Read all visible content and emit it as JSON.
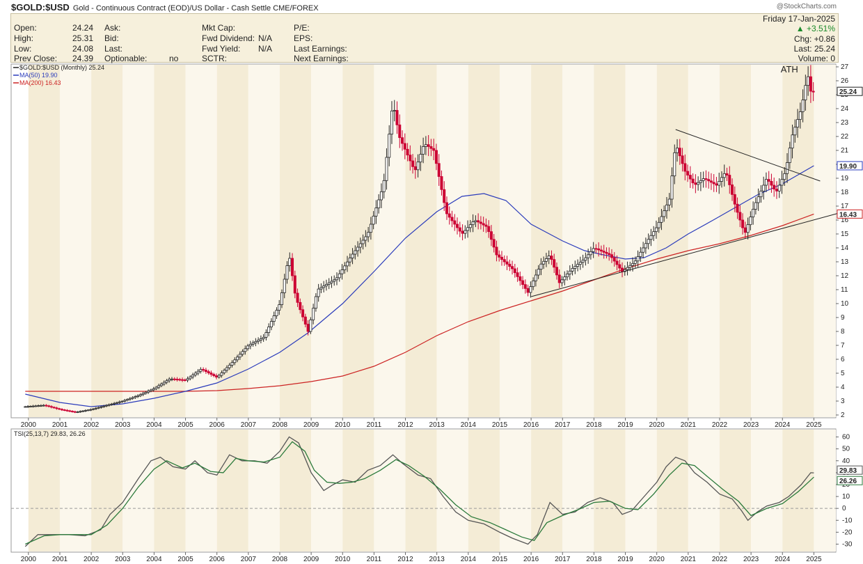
{
  "header": {
    "symbol": "$GOLD:$USD",
    "description": "Gold - Continuous Contract (EOD)/US Dollar - Cash Settle",
    "exchange": "CME/FOREX",
    "brand": "@StockCharts.com"
  },
  "info": {
    "open_label": "Open:",
    "open": "24.24",
    "high_label": "High:",
    "high": "25.31",
    "low_label": "Low:",
    "low": "24.08",
    "prev_label": "Prev Close:",
    "prev": "24.39",
    "ask_label": "Ask:",
    "bid_label": "Bid:",
    "last_label": "Last:",
    "optionable_label": "Optionable:",
    "optionable": "no",
    "mktcap_label": "Mkt Cap:",
    "fwddiv_label": "Fwd Dividend:",
    "fwddiv": "N/A",
    "fwdyield_label": "Fwd Yield:",
    "fwdyield": "N/A",
    "sctr_label": "SCTR:",
    "pe_label": "P/E:",
    "eps_label": "EPS:",
    "lastearn_label": "Last Earnings:",
    "nextearn_label": "Next Earnings:",
    "date": "Friday 17-Jan-2025",
    "change_pct": "▲ +3.51%",
    "chg": "Chg: +0.86",
    "last": "Last: 25.24",
    "volume": "Volume:    0"
  },
  "chart_data": [
    {
      "type": "candlestick",
      "panel": "price",
      "legend": [
        "$GOLD:$USD (Monthly) 25.24",
        "MA(50) 19.90",
        "MA(200) 16.43"
      ],
      "colors": {
        "up": "#222222",
        "down": "#cc0033",
        "ma50": "#2a3bbb",
        "ma200": "#cc2222",
        "trendline": "#222222"
      },
      "x": [
        "2000",
        "2001",
        "2002",
        "2003",
        "2004",
        "2005",
        "2006",
        "2007",
        "2008",
        "2009",
        "2010",
        "2011",
        "2012",
        "2013",
        "2014",
        "2015",
        "2016",
        "2017",
        "2018",
        "2019",
        "2020",
        "2021",
        "2022",
        "2023",
        "2024",
        "2025"
      ],
      "ylim": [
        2,
        27
      ],
      "yticks": [
        2,
        3,
        4,
        5,
        6,
        7,
        8,
        9,
        10,
        11,
        12,
        13,
        14,
        15,
        16,
        17,
        18,
        19,
        20,
        21,
        22,
        23,
        24,
        25,
        26,
        27
      ],
      "annotation": "ATH",
      "last_price_label": "25.24",
      "ma50_label": "19.90",
      "ma200_label": "16.43",
      "price_path": [
        [
          1999.9,
          2.6
        ],
        [
          2000.5,
          2.7
        ],
        [
          2001.0,
          2.4
        ],
        [
          2001.5,
          2.2
        ],
        [
          2002.0,
          2.4
        ],
        [
          2002.5,
          2.7
        ],
        [
          2003.0,
          3.0
        ],
        [
          2003.5,
          3.4
        ],
        [
          2004.0,
          3.9
        ],
        [
          2004.5,
          4.6
        ],
        [
          2005.0,
          4.5
        ],
        [
          2005.5,
          5.3
        ],
        [
          2006.0,
          4.7
        ],
        [
          2006.5,
          5.8
        ],
        [
          2007.0,
          7.0
        ],
        [
          2007.5,
          7.6
        ],
        [
          2008.0,
          10.0
        ],
        [
          2008.3,
          13.5
        ],
        [
          2008.5,
          10.5
        ],
        [
          2008.9,
          8.0
        ],
        [
          2009.2,
          11.0
        ],
        [
          2009.8,
          11.8
        ],
        [
          2010.3,
          13.5
        ],
        [
          2010.8,
          15.0
        ],
        [
          2011.3,
          18.5
        ],
        [
          2011.6,
          24.5
        ],
        [
          2011.8,
          22.0
        ],
        [
          2012.0,
          21.0
        ],
        [
          2012.3,
          19.5
        ],
        [
          2012.6,
          21.5
        ],
        [
          2012.9,
          21.0
        ],
        [
          2013.3,
          16.5
        ],
        [
          2013.8,
          15.0
        ],
        [
          2014.2,
          16.0
        ],
        [
          2014.6,
          15.5
        ],
        [
          2014.9,
          13.5
        ],
        [
          2015.4,
          12.5
        ],
        [
          2015.9,
          10.8
        ],
        [
          2016.3,
          12.8
        ],
        [
          2016.6,
          13.5
        ],
        [
          2016.9,
          11.5
        ],
        [
          2017.3,
          12.5
        ],
        [
          2017.7,
          13.2
        ],
        [
          2018.0,
          14.0
        ],
        [
          2018.5,
          13.5
        ],
        [
          2018.9,
          12.3
        ],
        [
          2019.3,
          13.0
        ],
        [
          2019.7,
          14.5
        ],
        [
          2020.0,
          15.5
        ],
        [
          2020.4,
          17.5
        ],
        [
          2020.6,
          21.5
        ],
        [
          2020.9,
          19.5
        ],
        [
          2021.2,
          18.5
        ],
        [
          2021.5,
          19.0
        ],
        [
          2021.9,
          18.5
        ],
        [
          2022.2,
          19.5
        ],
        [
          2022.5,
          17.0
        ],
        [
          2022.8,
          15.0
        ],
        [
          2023.1,
          17.0
        ],
        [
          2023.5,
          19.0
        ],
        [
          2023.8,
          18.0
        ],
        [
          2024.1,
          19.5
        ],
        [
          2024.3,
          22.0
        ],
        [
          2024.6,
          24.0
        ],
        [
          2024.8,
          26.5
        ],
        [
          2024.92,
          25.0
        ],
        [
          2025.0,
          25.24
        ]
      ],
      "ma50_path": [
        [
          1999.9,
          3.5
        ],
        [
          2001.0,
          2.9
        ],
        [
          2002.0,
          2.6
        ],
        [
          2003.0,
          2.8
        ],
        [
          2004.0,
          3.2
        ],
        [
          2005.0,
          3.7
        ],
        [
          2006.0,
          4.3
        ],
        [
          2007.0,
          5.3
        ],
        [
          2008.0,
          6.5
        ],
        [
          2008.9,
          7.9
        ],
        [
          2010.0,
          10.0
        ],
        [
          2011.0,
          12.3
        ],
        [
          2012.0,
          14.7
        ],
        [
          2013.0,
          16.6
        ],
        [
          2013.8,
          17.7
        ],
        [
          2014.5,
          17.9
        ],
        [
          2015.2,
          17.4
        ],
        [
          2016.0,
          15.7
        ],
        [
          2017.0,
          14.5
        ],
        [
          2017.7,
          13.8
        ],
        [
          2018.3,
          13.5
        ],
        [
          2019.0,
          13.2
        ],
        [
          2019.6,
          13.3
        ],
        [
          2020.3,
          14.0
        ],
        [
          2021.0,
          15.0
        ],
        [
          2021.8,
          16.0
        ],
        [
          2022.5,
          16.9
        ],
        [
          2023.2,
          17.8
        ],
        [
          2024.0,
          18.6
        ],
        [
          2025.0,
          19.9
        ]
      ],
      "ma200_path": [
        [
          1999.9,
          3.7
        ],
        [
          2002.0,
          3.7
        ],
        [
          2003.0,
          3.7
        ],
        [
          2004.0,
          3.7
        ],
        [
          2005.0,
          3.7
        ],
        [
          2006.0,
          3.75
        ],
        [
          2007.0,
          3.9
        ],
        [
          2008.0,
          4.1
        ],
        [
          2009.0,
          4.4
        ],
        [
          2010.0,
          4.8
        ],
        [
          2011.0,
          5.5
        ],
        [
          2012.0,
          6.5
        ],
        [
          2013.0,
          7.7
        ],
        [
          2014.0,
          8.7
        ],
        [
          2015.0,
          9.5
        ],
        [
          2016.0,
          10.2
        ],
        [
          2017.0,
          10.9
        ],
        [
          2018.0,
          11.7
        ],
        [
          2019.0,
          12.5
        ],
        [
          2020.0,
          13.2
        ],
        [
          2021.0,
          13.8
        ],
        [
          2022.0,
          14.3
        ],
        [
          2023.0,
          14.9
        ],
        [
          2024.0,
          15.6
        ],
        [
          2025.0,
          16.43
        ]
      ],
      "trendlines": [
        [
          [
            2016.0,
            10.5
          ],
          [
            2025.8,
            16.5
          ]
        ],
        [
          [
            2020.6,
            22.5
          ],
          [
            2025.2,
            18.8
          ]
        ]
      ]
    },
    {
      "type": "line",
      "panel": "indicator",
      "legend": "TSI(25,13,7) 29.83, 26.26",
      "x": [
        "2000",
        "2001",
        "2002",
        "2003",
        "2004",
        "2005",
        "2006",
        "2007",
        "2008",
        "2009",
        "2010",
        "2011",
        "2012",
        "2013",
        "2014",
        "2015",
        "2016",
        "2017",
        "2018",
        "2019",
        "2020",
        "2021",
        "2022",
        "2023",
        "2024",
        "2025"
      ],
      "ylim": [
        -35,
        65
      ],
      "yticks": [
        -30,
        -20,
        -10,
        0,
        10,
        20,
        30,
        40,
        50,
        60
      ],
      "value_labels": [
        "29.83",
        "26.26"
      ],
      "series": [
        {
          "name": "TSI",
          "color": "#555555",
          "values": [
            [
              1999.9,
              -32
            ],
            [
              2000.3,
              -22
            ],
            [
              2000.8,
              -22
            ],
            [
              2001.3,
              -22
            ],
            [
              2001.8,
              -23
            ],
            [
              2002.3,
              -18
            ],
            [
              2002.6,
              -5
            ],
            [
              2003.0,
              5
            ],
            [
              2003.5,
              25
            ],
            [
              2003.9,
              40
            ],
            [
              2004.2,
              43
            ],
            [
              2004.6,
              35
            ],
            [
              2005.0,
              33
            ],
            [
              2005.3,
              40
            ],
            [
              2005.7,
              30
            ],
            [
              2006.0,
              28
            ],
            [
              2006.4,
              45
            ],
            [
              2006.8,
              40
            ],
            [
              2007.2,
              40
            ],
            [
              2007.6,
              38
            ],
            [
              2008.0,
              48
            ],
            [
              2008.3,
              60
            ],
            [
              2008.6,
              55
            ],
            [
              2009.0,
              30
            ],
            [
              2009.4,
              15
            ],
            [
              2009.7,
              20
            ],
            [
              2010.0,
              24
            ],
            [
              2010.4,
              22
            ],
            [
              2010.8,
              32
            ],
            [
              2011.2,
              36
            ],
            [
              2011.6,
              45
            ],
            [
              2011.9,
              38
            ],
            [
              2012.4,
              28
            ],
            [
              2012.8,
              25
            ],
            [
              2013.2,
              10
            ],
            [
              2013.6,
              -3
            ],
            [
              2014.0,
              -10
            ],
            [
              2014.5,
              -13
            ],
            [
              2015.0,
              -20
            ],
            [
              2015.4,
              -25
            ],
            [
              2015.9,
              -30
            ],
            [
              2016.2,
              -22
            ],
            [
              2016.6,
              5
            ],
            [
              2017.0,
              -5
            ],
            [
              2017.4,
              -3
            ],
            [
              2017.8,
              5
            ],
            [
              2018.2,
              9
            ],
            [
              2018.6,
              5
            ],
            [
              2018.9,
              -5
            ],
            [
              2019.2,
              -2
            ],
            [
              2019.6,
              10
            ],
            [
              2020.0,
              22
            ],
            [
              2020.3,
              35
            ],
            [
              2020.6,
              43
            ],
            [
              2020.9,
              40
            ],
            [
              2021.2,
              30
            ],
            [
              2021.6,
              22
            ],
            [
              2022.0,
              12
            ],
            [
              2022.4,
              8
            ],
            [
              2022.7,
              -2
            ],
            [
              2022.9,
              -10
            ],
            [
              2023.2,
              -3
            ],
            [
              2023.5,
              2
            ],
            [
              2023.9,
              5
            ],
            [
              2024.2,
              10
            ],
            [
              2024.6,
              20
            ],
            [
              2024.9,
              30
            ],
            [
              2025.0,
              29.83
            ]
          ]
        },
        {
          "name": "Signal",
          "color": "#2b7a3b",
          "values": [
            [
              1999.9,
              -30
            ],
            [
              2000.5,
              -23
            ],
            [
              2001.0,
              -22
            ],
            [
              2001.5,
              -22
            ],
            [
              2002.0,
              -22
            ],
            [
              2002.5,
              -14
            ],
            [
              2003.0,
              0
            ],
            [
              2003.5,
              18
            ],
            [
              2004.0,
              33
            ],
            [
              2004.4,
              40
            ],
            [
              2004.9,
              34
            ],
            [
              2005.3,
              38
            ],
            [
              2005.8,
              31
            ],
            [
              2006.2,
              30
            ],
            [
              2006.6,
              42
            ],
            [
              2007.0,
              40
            ],
            [
              2007.5,
              39
            ],
            [
              2008.0,
              43
            ],
            [
              2008.4,
              56
            ],
            [
              2008.8,
              48
            ],
            [
              2009.1,
              32
            ],
            [
              2009.5,
              22
            ],
            [
              2009.9,
              21
            ],
            [
              2010.3,
              22
            ],
            [
              2010.7,
              25
            ],
            [
              2011.2,
              32
            ],
            [
              2011.7,
              41
            ],
            [
              2012.1,
              36
            ],
            [
              2012.6,
              27
            ],
            [
              2013.1,
              16
            ],
            [
              2013.6,
              3
            ],
            [
              2014.1,
              -7
            ],
            [
              2014.7,
              -12
            ],
            [
              2015.2,
              -18
            ],
            [
              2015.7,
              -24
            ],
            [
              2016.1,
              -27
            ],
            [
              2016.5,
              -12
            ],
            [
              2017.0,
              -6
            ],
            [
              2017.5,
              -1
            ],
            [
              2018.0,
              5
            ],
            [
              2018.5,
              6
            ],
            [
              2019.0,
              0
            ],
            [
              2019.4,
              -1
            ],
            [
              2019.9,
              12
            ],
            [
              2020.4,
              28
            ],
            [
              2020.8,
              38
            ],
            [
              2021.2,
              36
            ],
            [
              2021.6,
              27
            ],
            [
              2022.1,
              16
            ],
            [
              2022.6,
              6
            ],
            [
              2023.0,
              -6
            ],
            [
              2023.5,
              0
            ],
            [
              2024.0,
              4
            ],
            [
              2024.5,
              14
            ],
            [
              2025.0,
              26.26
            ]
          ]
        }
      ]
    }
  ]
}
